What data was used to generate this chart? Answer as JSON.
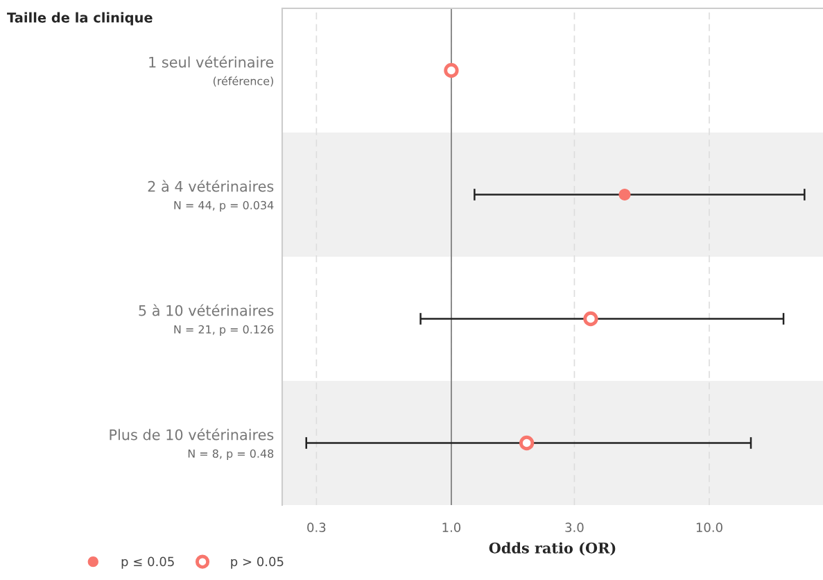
{
  "chart_data": {
    "type": "scatter",
    "title": "Taille de la clinique",
    "xlabel": "Odds ratio (OR)",
    "orientation": "horizontal",
    "categories": [
      "1 seul vétérinaire\n(référence)",
      "2 à 4 vétérinaires\nN = 44, p = 0.034",
      "5 à 10 vétérinaires\nN = 21, p = 0.126",
      "Plus de 10 vétérinaires\nN = 8, p = 0.48"
    ],
    "series": [
      {
        "name": "p ≤ 0.05",
        "color": "#f8766d",
        "values": [
          null,
          4.7,
          null,
          null
        ],
        "errors": [
          null,
          [
            1.23,
            23.4
          ],
          null,
          null
        ]
      },
      {
        "name": "p > 0.05",
        "color": "#f8766d",
        "values": [
          1.0,
          null,
          3.47,
          1.96
        ],
        "errors": [
          null,
          null,
          [
            0.76,
            19.4
          ],
          [
            0.274,
            14.5
          ]
        ]
      }
    ],
    "log": "x",
    "xlim": [
      0.221,
      27.6
    ],
    "xticks": [
      {
        "value": 0.3,
        "label": "0.3"
      },
      {
        "value": 1.0,
        "label": "1.0"
      },
      {
        "value": 3.0,
        "label": "3.0"
      },
      {
        "value": 10.0,
        "label": "10.0"
      }
    ],
    "grid": "x",
    "marker": "circle",
    "legend": "bottom left",
    "ref_lines": [
      {
        "axis": "x",
        "value": 1.0,
        "color": "#808080"
      }
    ]
  }
}
